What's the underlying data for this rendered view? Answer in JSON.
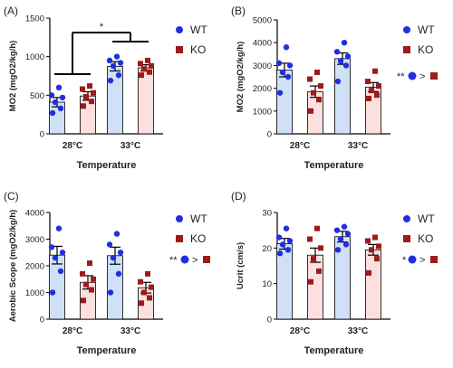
{
  "colors": {
    "wt": "#1f2fe0",
    "ko": "#9e1b1b",
    "wt_fill": "#cfe0f7",
    "ko_fill": "#fbe0df",
    "axis": "#000000"
  },
  "chart_data": [
    {
      "panel": "(A)",
      "type": "bar",
      "ylabel": "MO2 (mgO2/kg/h)",
      "xlabel": "Temperature",
      "categories": [
        "28°C",
        "33°C"
      ],
      "ylim": [
        0,
        1500
      ],
      "yticks": [
        "0",
        "500",
        "1000",
        "1500"
      ],
      "legend": [
        "WT",
        "KO"
      ],
      "series": [
        {
          "name": "WT",
          "values": [
            410,
            875
          ],
          "sem": [
            60,
            60
          ],
          "points": [
            [
              270,
              330,
              410,
              470,
              500,
              600
            ],
            [
              690,
              760,
              880,
              920,
              950,
              1000
            ]
          ]
        },
        {
          "name": "KO",
          "values": [
            490,
            855
          ],
          "sem": [
            55,
            40
          ],
          "points": [
            [
              360,
              420,
              480,
              530,
              580,
              620
            ],
            [
              760,
              800,
              840,
              880,
              910,
              950
            ]
          ]
        }
      ],
      "annotation": "*"
    },
    {
      "panel": "(B)",
      "type": "bar",
      "ylabel": "MO2 (mgO2/kg/h)",
      "xlabel": "Temperature",
      "categories": [
        "28°C",
        "33°C"
      ],
      "ylim": [
        0,
        5000
      ],
      "yticks": [
        "0",
        "1000",
        "2000",
        "3000",
        "4000",
        "5000"
      ],
      "legend": [
        "WT",
        "KO"
      ],
      "series": [
        {
          "name": "WT",
          "values": [
            2800,
            3300
          ],
          "sem": [
            300,
            250
          ],
          "points": [
            [
              1800,
              2500,
              2700,
              3000,
              3100,
              3800
            ],
            [
              2300,
              3000,
              3200,
              3400,
              3600,
              4000
            ]
          ]
        },
        {
          "name": "KO",
          "values": [
            1850,
            2050
          ],
          "sem": [
            250,
            200
          ],
          "points": [
            [
              1000,
              1500,
              1800,
              2100,
              2400,
              2700
            ],
            [
              1550,
              1700,
              1900,
              2100,
              2300,
              2750
            ]
          ]
        }
      ],
      "note": "**"
    },
    {
      "panel": "(C)",
      "type": "bar",
      "ylabel": "Aerobic Scope (mgO2/kg/h)",
      "xlabel": "Temperature",
      "categories": [
        "28°C",
        "33°C"
      ],
      "ylim": [
        0,
        4000
      ],
      "yticks": [
        "0",
        "1000",
        "2000",
        "3000",
        "4000"
      ],
      "legend": [
        "WT",
        "KO"
      ],
      "series": [
        {
          "name": "WT",
          "values": [
            2400,
            2380
          ],
          "sem": [
            330,
            320
          ],
          "points": [
            [
              1000,
              1800,
              2300,
              2500,
              2700,
              3400
            ],
            [
              1000,
              1700,
              2300,
              2500,
              2800,
              3200
            ]
          ]
        },
        {
          "name": "KO",
          "values": [
            1380,
            1180
          ],
          "sem": [
            250,
            200
          ],
          "points": [
            [
              700,
              1100,
              1300,
              1500,
              1700,
              2100
            ],
            [
              600,
              800,
              1000,
              1200,
              1400,
              1700
            ]
          ]
        }
      ],
      "note": "**"
    },
    {
      "panel": "(D)",
      "type": "bar",
      "ylabel": "Ucrit (cm/s)",
      "xlabel": "Temperature",
      "categories": [
        "28°C",
        "33°C"
      ],
      "ylim": [
        0,
        30
      ],
      "yticks": [
        "0",
        "10",
        "20",
        "30"
      ],
      "legend": [
        "WT",
        "KO"
      ],
      "series": [
        {
          "name": "WT",
          "values": [
            21.2,
            23.2
          ],
          "sem": [
            1.5,
            1.5
          ],
          "points": [
            [
              18.5,
              19.5,
              21,
              22,
              23,
              25.5
            ],
            [
              19.5,
              21,
              22.5,
              24,
              25,
              26
            ]
          ]
        },
        {
          "name": "KO",
          "values": [
            18.0,
            19.5
          ],
          "sem": [
            2.0,
            1.5
          ],
          "points": [
            [
              10.5,
              13.5,
              17,
              20,
              22.5,
              25.5
            ],
            [
              13,
              17,
              19.5,
              20.5,
              22,
              23
            ]
          ]
        }
      ],
      "note": "*"
    }
  ]
}
